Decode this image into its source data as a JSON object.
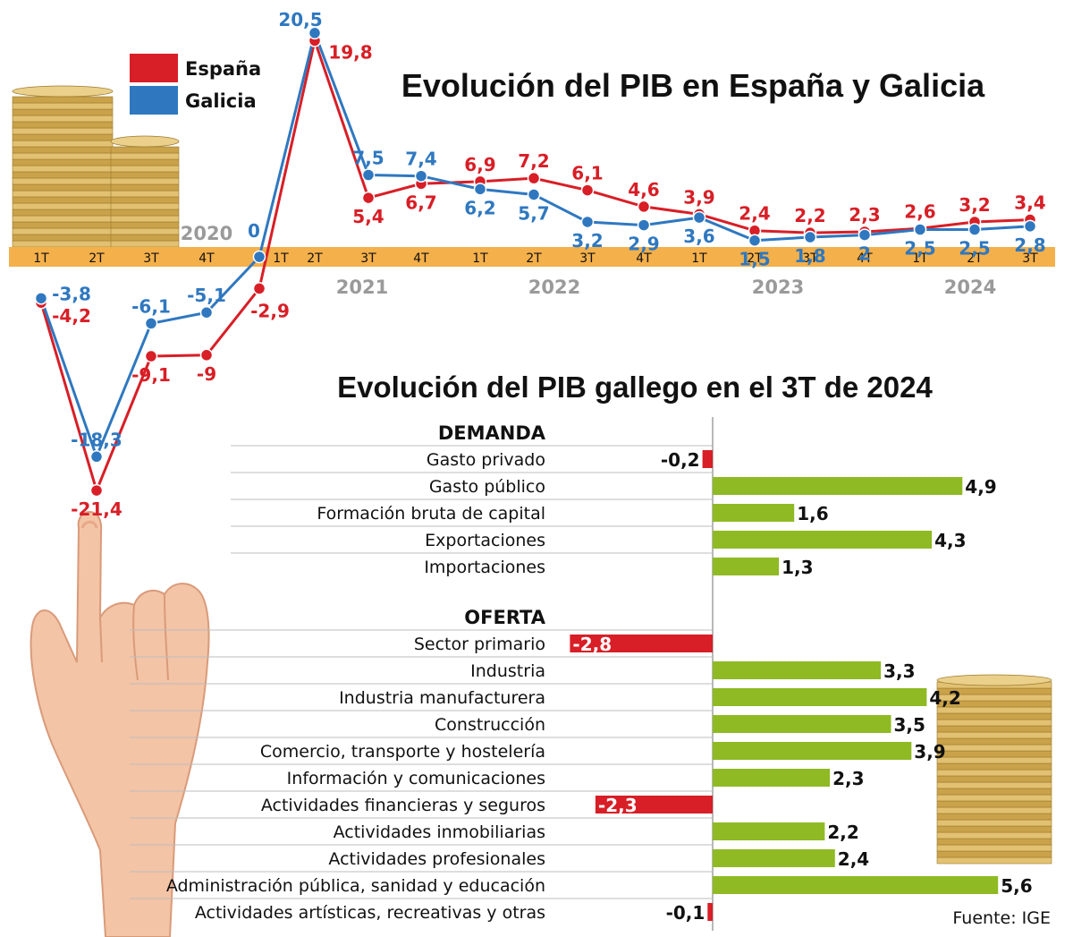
{
  "colors": {
    "espana": "#d81e26",
    "galicia": "#2f78c0",
    "axis_band": "#f4b04a",
    "positive_bar": "#8fba24",
    "negative_bar": "#d81e26",
    "year_label": "#9a9a9a"
  },
  "icons": [
    "coin-stack-icon",
    "hand-pointing-icon"
  ],
  "chart_data": [
    {
      "type": "line",
      "title": "Evolución del PIB en España y Galicia",
      "legend_position": "top-left",
      "categories": [
        "1T",
        "2T",
        "3T",
        "4T",
        "1T",
        "2T",
        "3T",
        "4T",
        "1T",
        "2T",
        "3T",
        "4T",
        "1T",
        "2T",
        "3T",
        "4T",
        "1T",
        "2T",
        "3T"
      ],
      "years": [
        "2020",
        "2021",
        "2022",
        "2023",
        "2024"
      ],
      "series": [
        {
          "name": "España",
          "values": [
            -4.2,
            -21.4,
            -9.1,
            -9,
            -2.9,
            19.8,
            5.4,
            6.7,
            6.9,
            7.2,
            6.1,
            4.6,
            3.9,
            2.4,
            2.2,
            2.3,
            2.6,
            3.2,
            3.4
          ],
          "labels": [
            "-4,2",
            "-21,4",
            "-9,1",
            "-9",
            "-2,9",
            "19,8",
            "5,4",
            "6,7",
            "6,9",
            "7,2",
            "6,1",
            "4,6",
            "3,9",
            "2,4",
            "2,2",
            "2,3",
            "2,6",
            "3,2",
            "3,4"
          ]
        },
        {
          "name": "Galicia",
          "values": [
            -3.8,
            -18.3,
            -6.1,
            -5.1,
            0,
            20.5,
            7.5,
            7.4,
            6.2,
            5.7,
            3.2,
            2.9,
            3.6,
            1.5,
            1.8,
            2,
            2.5,
            2.5,
            2.8
          ],
          "labels": [
            "-3,8",
            "-18,3",
            "-6,1",
            "-5,1",
            "0",
            "20,5",
            "7,5",
            "7,4",
            "6,2",
            "5,7",
            "3,2",
            "2,9",
            "3,6",
            "1,5",
            "1,8",
            "2",
            "2,5",
            "2,5",
            "2,8"
          ]
        }
      ]
    },
    {
      "type": "bar",
      "orientation": "horizontal",
      "title": "Evolución  del PIB gallego en el 3T de 2024",
      "groups": [
        {
          "name": "DEMANDA",
          "categories": [
            "Gasto privado",
            "Gasto público",
            "Formación bruta de capital",
            "Exportaciones",
            "Importaciones"
          ],
          "values": [
            -0.2,
            4.9,
            1.6,
            4.3,
            1.3
          ],
          "labels": [
            "-0,2",
            "4,9",
            "1,6",
            "4,3",
            "1,3"
          ]
        },
        {
          "name": "OFERTA",
          "categories": [
            "Sector primario",
            "Industria",
            "Industria manufacturera",
            "Construcción",
            "Comercio, transporte y hostelería",
            "Información y comunicaciones",
            "Actividades financieras y seguros",
            "Actividades inmobiliarias",
            "Actividades profesionales",
            "Administración pública, sanidad y educación",
            "Actividades artísticas, recreativas y otras"
          ],
          "values": [
            -2.8,
            3.3,
            4.2,
            3.5,
            3.9,
            2.3,
            -2.3,
            2.2,
            2.4,
            5.6,
            -0.1
          ],
          "labels": [
            "-2,8",
            "3,3",
            "4,2",
            "3,5",
            "3,9",
            "2,3",
            "-2,3",
            "2,2",
            "2,4",
            "5,6",
            "-0,1"
          ]
        }
      ]
    }
  ],
  "source": "Fuente: IGE"
}
